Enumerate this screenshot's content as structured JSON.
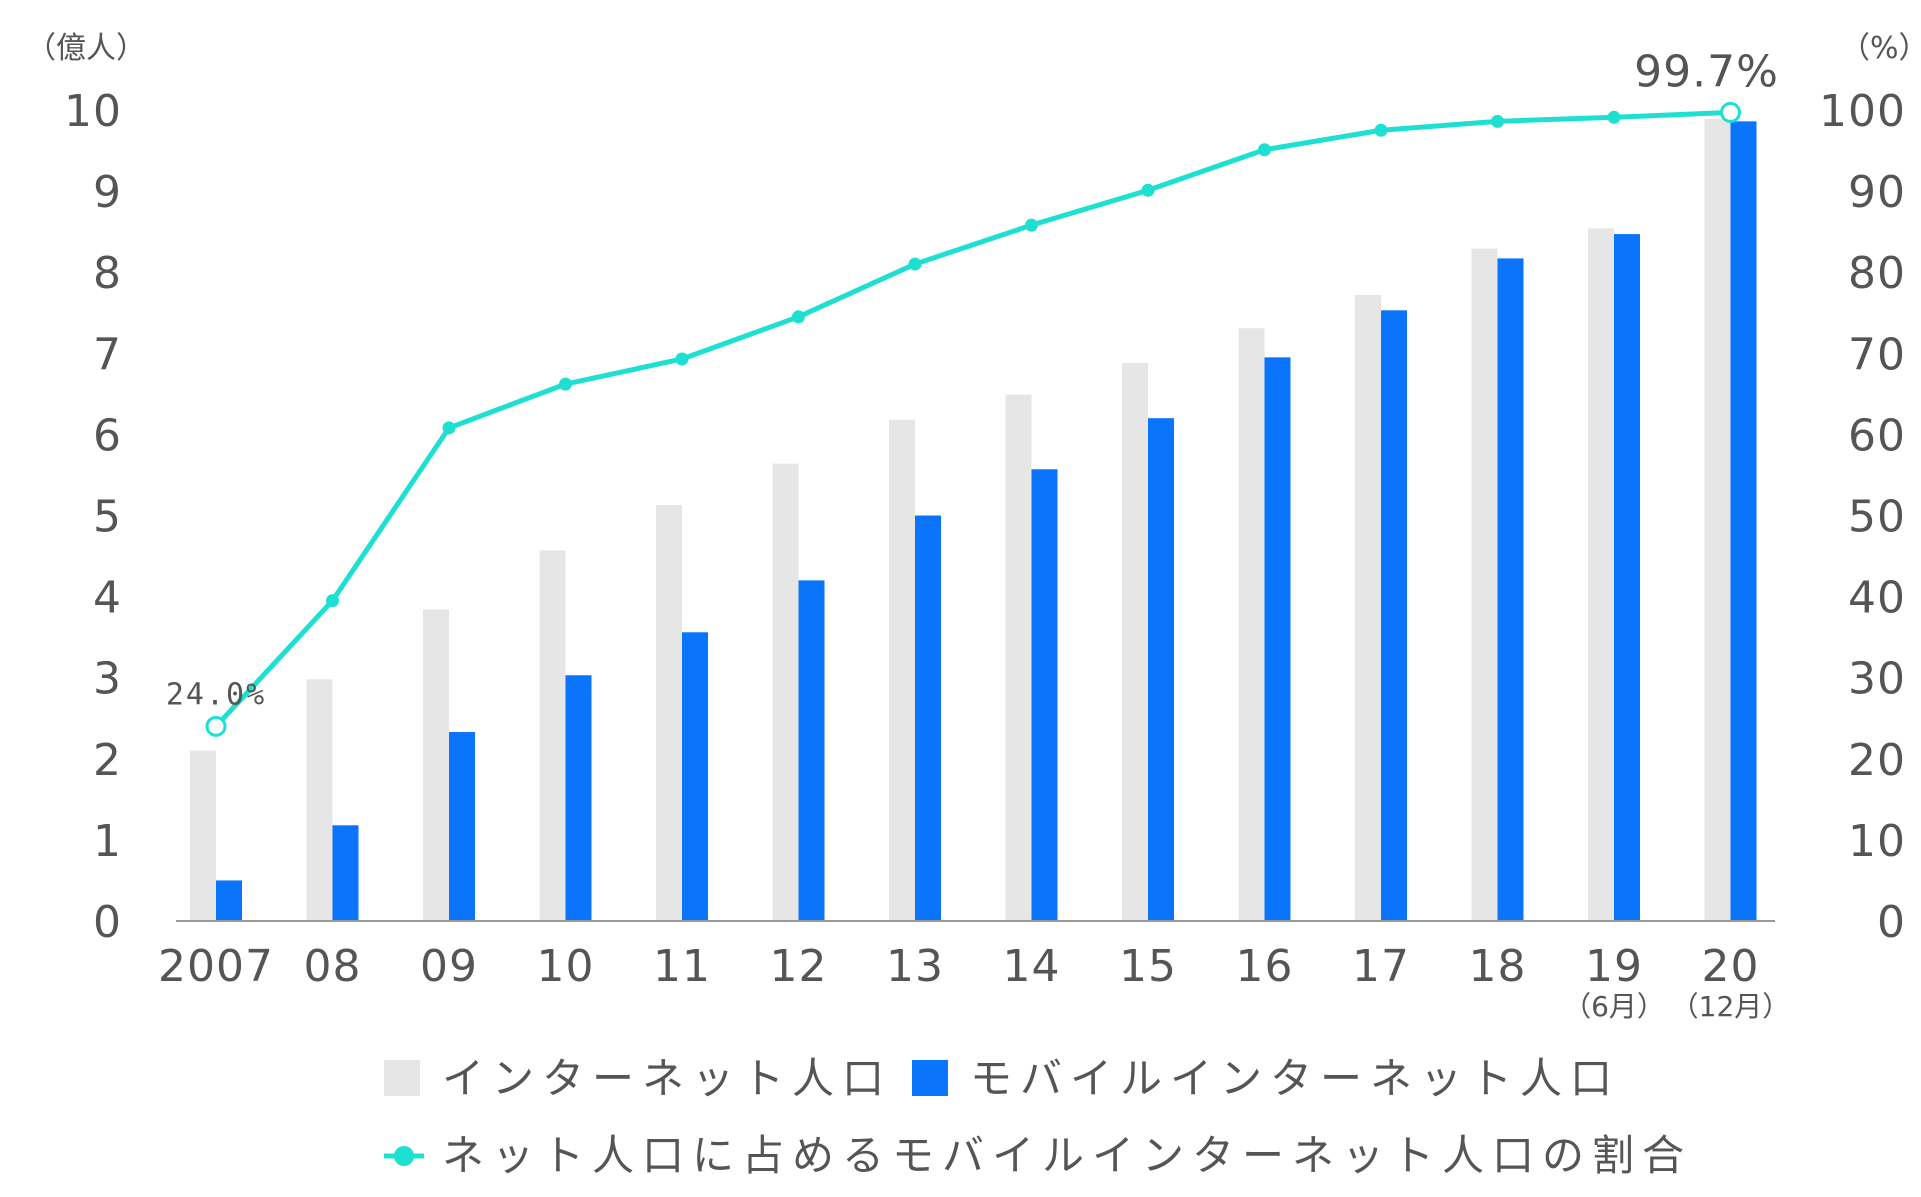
{
  "chart_data": {
    "type": "bar",
    "title": "",
    "xlabel": "",
    "y_left_unit": "（億人）",
    "y_right_unit": "（%）",
    "ylim_left": [
      0,
      10
    ],
    "ylim_right": [
      0,
      100
    ],
    "y_left_ticks": [
      "0",
      "1",
      "2",
      "3",
      "4",
      "5",
      "6",
      "7",
      "8",
      "9",
      "10"
    ],
    "y_right_ticks": [
      "0",
      "10",
      "20",
      "30",
      "40",
      "50",
      "60",
      "70",
      "80",
      "90",
      "100"
    ],
    "categories": [
      "2007",
      "08",
      "09",
      "10",
      "11",
      "12",
      "13",
      "14",
      "15",
      "16",
      "17",
      "18",
      "19",
      "20"
    ],
    "category_sublabels": [
      "",
      "",
      "",
      "",
      "",
      "",
      "",
      "",
      "",
      "",
      "",
      "",
      "（6月）",
      "（12月）"
    ],
    "grid": false,
    "legend_position": "bottom",
    "series": [
      {
        "name": "インターネット人口",
        "kind": "bar",
        "axis": "left",
        "color": "#e6e6e6",
        "values": [
          2.1,
          2.98,
          3.84,
          4.57,
          5.13,
          5.64,
          6.18,
          6.49,
          6.88,
          7.31,
          7.72,
          8.29,
          8.54,
          9.89
        ]
      },
      {
        "name": "モバイルインターネット人口",
        "kind": "bar",
        "axis": "left",
        "color": "#0a74fb",
        "values": [
          0.5,
          1.18,
          2.33,
          3.03,
          3.56,
          4.2,
          5.0,
          5.57,
          6.2,
          6.95,
          7.53,
          8.17,
          8.47,
          9.86
        ]
      },
      {
        "name": "ネット人口に占めるモバイルインターネット人口の割合",
        "kind": "line",
        "axis": "right",
        "color": "#1ddfd2",
        "values": [
          24.0,
          39.5,
          60.8,
          66.2,
          69.3,
          74.5,
          81.0,
          85.8,
          90.1,
          95.1,
          97.5,
          98.6,
          99.1,
          99.7
        ]
      }
    ],
    "annotations": {
      "first": "24.0%",
      "last": "99.7%"
    }
  }
}
